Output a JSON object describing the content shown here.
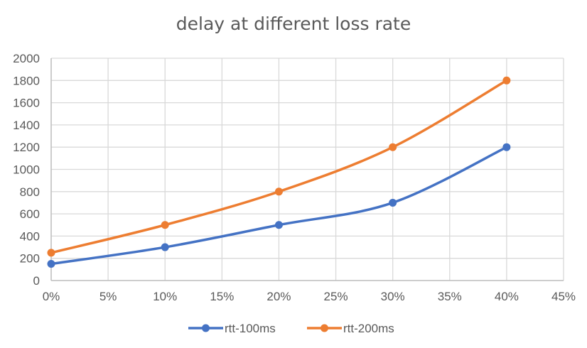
{
  "chart_data": {
    "type": "line",
    "title": "delay at different loss rate",
    "xlabel": "",
    "ylabel": "",
    "x": [
      0,
      10,
      20,
      30,
      40
    ],
    "x_unit": "%",
    "xlim": [
      0,
      45
    ],
    "x_ticks": [
      "0%",
      "5%",
      "10%",
      "15%",
      "20%",
      "25%",
      "30%",
      "35%",
      "40%",
      "45%"
    ],
    "ylim": [
      0,
      2000
    ],
    "y_ticks": [
      "0",
      "200",
      "400",
      "600",
      "800",
      "1000",
      "1200",
      "1400",
      "1600",
      "1800",
      "2000"
    ],
    "grid": true,
    "smooth": true,
    "legend_position": "bottom",
    "series": [
      {
        "name": "rtt-100ms",
        "color": "#4472C4",
        "values": [
          150,
          300,
          500,
          700,
          1200
        ]
      },
      {
        "name": "rtt-200ms",
        "color": "#ED7D31",
        "values": [
          250,
          500,
          800,
          1200,
          1800
        ]
      }
    ]
  }
}
